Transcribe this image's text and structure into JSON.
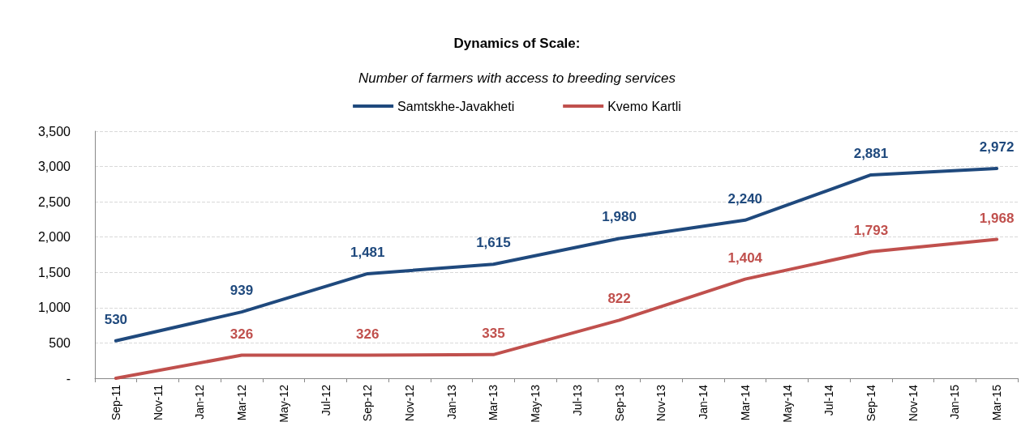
{
  "chart_data": {
    "type": "line",
    "title": "Dynamics of Scale:",
    "subtitle": "Number of farmers with access to breeding services",
    "categories": [
      "Sep-11",
      "Nov-11",
      "Jan-12",
      "Mar-12",
      "May-12",
      "Jul-12",
      "Sep-12",
      "Nov-12",
      "Jan-13",
      "Mar-13",
      "May-13",
      "Jul-13",
      "Sep-13",
      "Nov-13",
      "Jan-14",
      "Mar-14",
      "May-14",
      "Jul-14",
      "Sep-14",
      "Nov-14",
      "Jan-15",
      "Mar-15"
    ],
    "series": [
      {
        "name": "Samtskhe-Javakheti",
        "color": "#1f497d",
        "values": [
          530,
          null,
          null,
          939,
          null,
          null,
          1481,
          null,
          null,
          1615,
          null,
          null,
          1980,
          null,
          null,
          2240,
          null,
          null,
          2881,
          null,
          null,
          2972
        ],
        "value_labels": [
          "530",
          null,
          null,
          "939",
          null,
          null,
          "1,481",
          null,
          null,
          "1,615",
          null,
          null,
          "1,980",
          null,
          null,
          "2,240",
          null,
          null,
          "2,881",
          null,
          null,
          "2,972"
        ]
      },
      {
        "name": "Kvemo Kartli",
        "color": "#c0504d",
        "values": [
          0,
          null,
          null,
          326,
          null,
          null,
          326,
          null,
          null,
          335,
          null,
          null,
          822,
          null,
          null,
          1404,
          null,
          null,
          1793,
          null,
          null,
          1968
        ],
        "value_labels": [
          null,
          null,
          null,
          "326",
          null,
          null,
          "326",
          null,
          null,
          "335",
          null,
          null,
          "822",
          null,
          null,
          "1,404",
          null,
          null,
          "1,793",
          null,
          null,
          "1,968"
        ]
      }
    ],
    "ylim": [
      0,
      3500
    ],
    "yticks": [
      {
        "value": 0,
        "label": "-"
      },
      {
        "value": 500,
        "label": "500"
      },
      {
        "value": 1000,
        "label": "1,000"
      },
      {
        "value": 1500,
        "label": "1,500"
      },
      {
        "value": 2000,
        "label": "2,000"
      },
      {
        "value": 2500,
        "label": "2,500"
      },
      {
        "value": 3000,
        "label": "3,000"
      },
      {
        "value": 3500,
        "label": "3,500"
      }
    ],
    "grid": "y",
    "legend": "top",
    "marker": "none",
    "line_style": "solid"
  }
}
